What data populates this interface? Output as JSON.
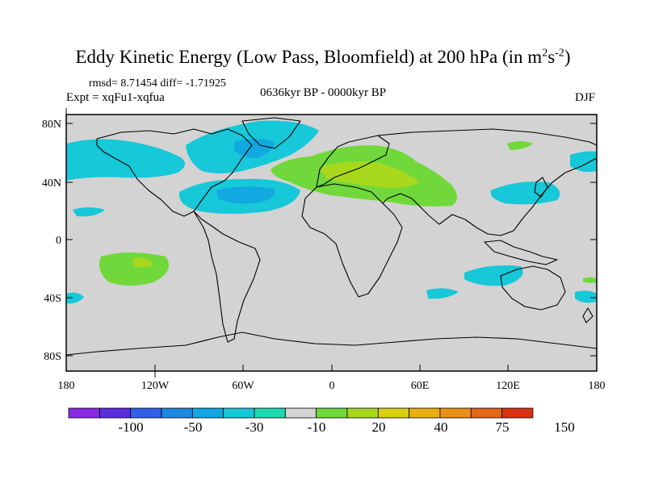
{
  "title": {
    "main": "Eddy Kinetic Energy (Low Pass, Bloomfield) at 200 hPa (in m",
    "sup1": "2",
    "mid": "s",
    "sup2": "-2",
    "end": ")"
  },
  "header": {
    "rmsd_line": "rmsd= 8.71454 diff= -1.71925",
    "expt_line": "Expt = xqFu1-xqfua",
    "period": "0636kyr BP - 0000kyr BP",
    "season": "DJF"
  },
  "axes": {
    "lat_labels": [
      "80N",
      "40N",
      "0",
      "40S",
      "80S"
    ],
    "lon_labels": [
      "180",
      "120W",
      "60W",
      "0",
      "60E",
      "120E",
      "180"
    ]
  },
  "colorbar": {
    "colors": [
      "#8a2be2",
      "#5b2ee0",
      "#3060e8",
      "#1e88e0",
      "#12a8e0",
      "#16c8d8",
      "#1ed8b0",
      "#d3d3d3",
      "#70d83a",
      "#a8d81e",
      "#d8d010",
      "#e8b010",
      "#e89018",
      "#e06818",
      "#d83010"
    ],
    "labels": [
      "-100",
      "-50",
      "-30",
      "-10",
      "20",
      "40",
      "75",
      "150"
    ]
  },
  "fill_colors": {
    "neg_light": "#1ed8b0",
    "neg_mid": "#16c8d8",
    "neg_strong": "#12a8e0",
    "pos_light": "#70d83a",
    "pos_mid": "#a8d81e",
    "land_bg": "#d3d3d3"
  }
}
